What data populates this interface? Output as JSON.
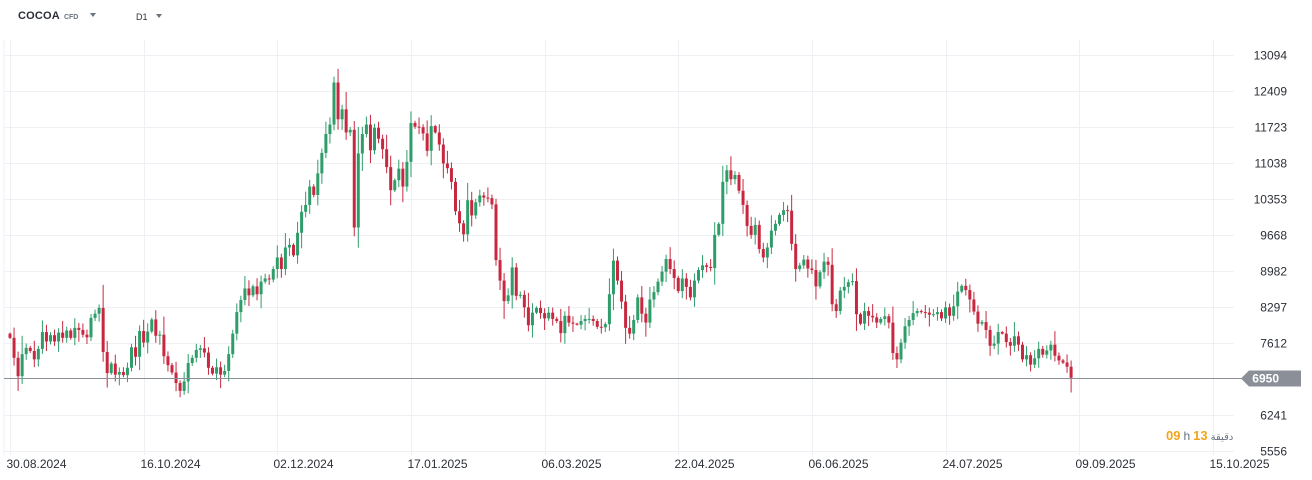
{
  "toolbar": {
    "symbol": "COCOA",
    "symbol_type": "CFD",
    "timeframe": "D1"
  },
  "countdown": {
    "hours": "09",
    "hours_unit": "h",
    "minutes": "13",
    "label": "دقيقة"
  },
  "colors": {
    "up": "#2e9d6a",
    "down": "#c8283f",
    "grid": "#eef0f3",
    "price_line": "#8a8f98",
    "price_tag": "#8a8f98",
    "axis_text": "#2b2f36"
  },
  "chart_data": {
    "type": "candlestick",
    "symbol": "COCOA",
    "timeframe": "D1",
    "ylim": [
      5556,
      13300
    ],
    "y_ticks": [
      13094,
      12409,
      11723,
      11038,
      10353,
      9668,
      8982,
      8297,
      7612,
      6241,
      5556
    ],
    "x_ticks": [
      "30.08.2024",
      "16.10.2024",
      "02.12.2024",
      "17.01.2025",
      "06.03.2025",
      "22.04.2025",
      "06.06.2025",
      "24.07.2025",
      "09.09.2025",
      "15.10.2025"
    ],
    "x_tick_index": [
      0,
      33,
      66,
      99,
      132,
      165,
      198,
      231,
      264,
      297
    ],
    "current_price": 6950,
    "closes": [
      7710,
      7330,
      6980,
      7400,
      7520,
      7460,
      7300,
      7500,
      7820,
      7640,
      7760,
      7640,
      7810,
      7710,
      7850,
      7710,
      7900,
      7860,
      7770,
      7720,
      8090,
      8170,
      8280,
      7440,
      7040,
      7220,
      7010,
      7060,
      7000,
      7140,
      7530,
      7350,
      7840,
      7620,
      7830,
      8060,
      7750,
      7770,
      7360,
      7190,
      7050,
      6850,
      6700,
      6880,
      7230,
      7330,
      7480,
      7510,
      7430,
      7140,
      7030,
      7150,
      7010,
      7080,
      7400,
      7790,
      8200,
      8430,
      8650,
      8520,
      8690,
      8540,
      8780,
      8840,
      8820,
      9020,
      9240,
      9020,
      9430,
      9480,
      9280,
      9710,
      10110,
      10240,
      10590,
      10430,
      10840,
      11230,
      11590,
      11770,
      12570,
      11870,
      12060,
      11620,
      11670,
      9810,
      11220,
      11590,
      11770,
      11280,
      11710,
      11500,
      11300,
      10960,
      10520,
      10710,
      10930,
      10590,
      11060,
      11800,
      11730,
      11720,
      11600,
      11270,
      11740,
      11620,
      11390,
      11030,
      10940,
      10680,
      10120,
      9890,
      9680,
      10330,
      10040,
      10290,
      10420,
      10380,
      10370,
      10250,
      9190,
      8800,
      8410,
      8520,
      9050,
      8510,
      8530,
      8290,
      7950,
      8190,
      8280,
      8180,
      8080,
      8190,
      8070,
      8030,
      7800,
      8130,
      8000,
      7980,
      7960,
      8030,
      8070,
      8070,
      8030,
      7920,
      7910,
      7970,
      8540,
      9180,
      8800,
      8400,
      7900,
      7790,
      8050,
      8480,
      8170,
      8000,
      8440,
      8580,
      8780,
      8970,
      9210,
      9020,
      8850,
      8600,
      8840,
      8680,
      8480,
      8800,
      9000,
      9090,
      9060,
      9040,
      9670,
      9880,
      10680,
      10900,
      10730,
      10810,
      10510,
      10240,
      9840,
      9670,
      9860,
      9400,
      9240,
      9430,
      9750,
      9880,
      10050,
      10140,
      10130,
      9500,
      9020,
      9090,
      9200,
      9030,
      9000,
      8690,
      8960,
      9160,
      9100,
      8350,
      8220,
      8610,
      8680,
      8770,
      8790,
      8160,
      7980,
      8220,
      8130,
      8100,
      8000,
      8070,
      8120,
      8000,
      7420,
      7300,
      7620,
      7930,
      8050,
      8180,
      8220,
      8200,
      8190,
      8150,
      8160,
      8200,
      8080,
      8290,
      8130,
      8310,
      8590,
      8700,
      8620,
      8440,
      8210,
      7980,
      8010,
      7860,
      7560,
      7600,
      7820,
      7790,
      7630,
      7560,
      7740,
      7580,
      7300,
      7380,
      7200,
      7320,
      7500,
      7390,
      7470,
      7580,
      7370,
      7280,
      7240,
      7160,
      6950
    ]
  }
}
